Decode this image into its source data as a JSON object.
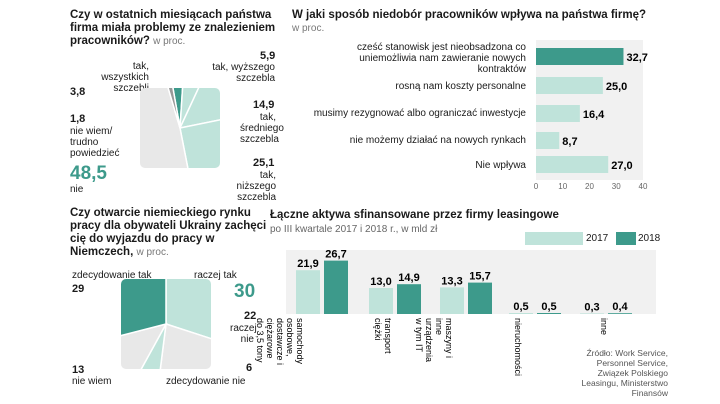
{
  "chart_data": [
    {
      "type": "pie",
      "title": "Czy w ostatnich miesiącach państwa firma miała problemy ze znalezieniem pracowników?",
      "unit": "w proc.",
      "slices": [
        {
          "label": "tak, wszystkich szczebli",
          "value": 3.8
        },
        {
          "label": "tak, wyższego szczebla",
          "value": 5.9
        },
        {
          "label": "tak, średniego szczebla",
          "value": 14.9
        },
        {
          "label": "tak, niższego szczebla",
          "value": 25.1
        },
        {
          "label": "nie",
          "value": 48.5
        },
        {
          "label": "nie wiem/ trudno powiedzieć",
          "value": 1.8
        }
      ]
    },
    {
      "type": "bar",
      "title": "W jaki sposób niedobór pracowników wpływa na państwa firmę?",
      "unit": "w proc.",
      "categories": [
        "cześć stanowisk jest nieobsadzona co uniemożliwia nam zawieranie nowych kontraktów",
        "rosną nam koszty personalne",
        "musimy rezygnować albo ograniczać inwestycje",
        "nie możemy działać na nowych rynkach",
        "Nie wpływa"
      ],
      "values": [
        32.7,
        25.0,
        16.4,
        8.7,
        27.0
      ],
      "value_labels": [
        "32,7",
        "25,0",
        "16,4",
        "8,7",
        "27,0"
      ],
      "xlim": [
        0,
        40
      ],
      "xticks": [
        "0",
        "10",
        "20",
        "30",
        "40"
      ]
    },
    {
      "type": "pie",
      "title": "Czy otwarcie niemieckiego rynku pracy dla obywateli Ukrainy zachęci cię do wyjazdu do pracy w Niemczech,",
      "unit": "w proc.",
      "slices": [
        {
          "label": "raczej tak",
          "value": 30
        },
        {
          "label": "raczej nie",
          "value": 22
        },
        {
          "label": "zdecydowanie nie",
          "value": 6
        },
        {
          "label": "nie wiem",
          "value": 13
        },
        {
          "label": "zdecydowanie tak",
          "value": 29
        }
      ]
    },
    {
      "type": "bar",
      "title": "Łączne aktywa sfinansowane przez firmy leasingowe",
      "subtitle": "po III kwartale 2017 i 2018 r., w mld zł",
      "categories": [
        "samochody osobowe, dostawcze i ciężarowe do 3,5 tony",
        "transport ciężki",
        "maszyny i inne urządzenia w tym IT",
        "nieruchomości",
        "inne"
      ],
      "series": [
        {
          "name": "2017",
          "values": [
            21.9,
            13.0,
            13.3,
            0.5,
            0.3
          ],
          "labels": [
            "21,9",
            "13,0",
            "13,3",
            "0,5",
            "0,3"
          ]
        },
        {
          "name": "2018",
          "values": [
            26.7,
            14.9,
            15.7,
            0.5,
            0.4
          ],
          "labels": [
            "26,7",
            "14,9",
            "15,7",
            "0,5",
            "0,4"
          ]
        }
      ]
    }
  ],
  "pie1": {
    "l1": "tak, wszystkich",
    "l1b": "szczebli",
    "v1": "3,8",
    "l2": "tak, wyższego",
    "l2b": "szczebla",
    "v2": "5,9",
    "l3": "tak,",
    "l3b": "średniego",
    "l3c": "szczebla",
    "v3": "14,9",
    "l4": "tak,",
    "l4b": "niższego szczebla",
    "v4": "25,1",
    "l5": "nie",
    "v5": "48,5",
    "l6": "nie wiem/",
    "l6b": "trudno",
    "l6c": "powiedzieć",
    "v6": "1,8"
  },
  "pie2": {
    "a": "zdecydowanie tak",
    "av": "29",
    "b": "raczej tak",
    "bv": "30",
    "c": "raczej",
    "c2": "nie",
    "cv": "22",
    "d": "zdecydowanie nie",
    "dv": "6",
    "e": "nie wiem",
    "ev": "13"
  },
  "legend": {
    "y2017": "2017",
    "y2018": "2018"
  },
  "source": [
    "Źródło: Work Service,",
    "Personnel Service,",
    "Związek Polskiego",
    "Leasingu, Ministerstwo",
    "Finansów"
  ],
  "colors": {
    "teal": "#3d9a8b",
    "light": "#bfe3da",
    "gray": "#e8e8e8"
  }
}
